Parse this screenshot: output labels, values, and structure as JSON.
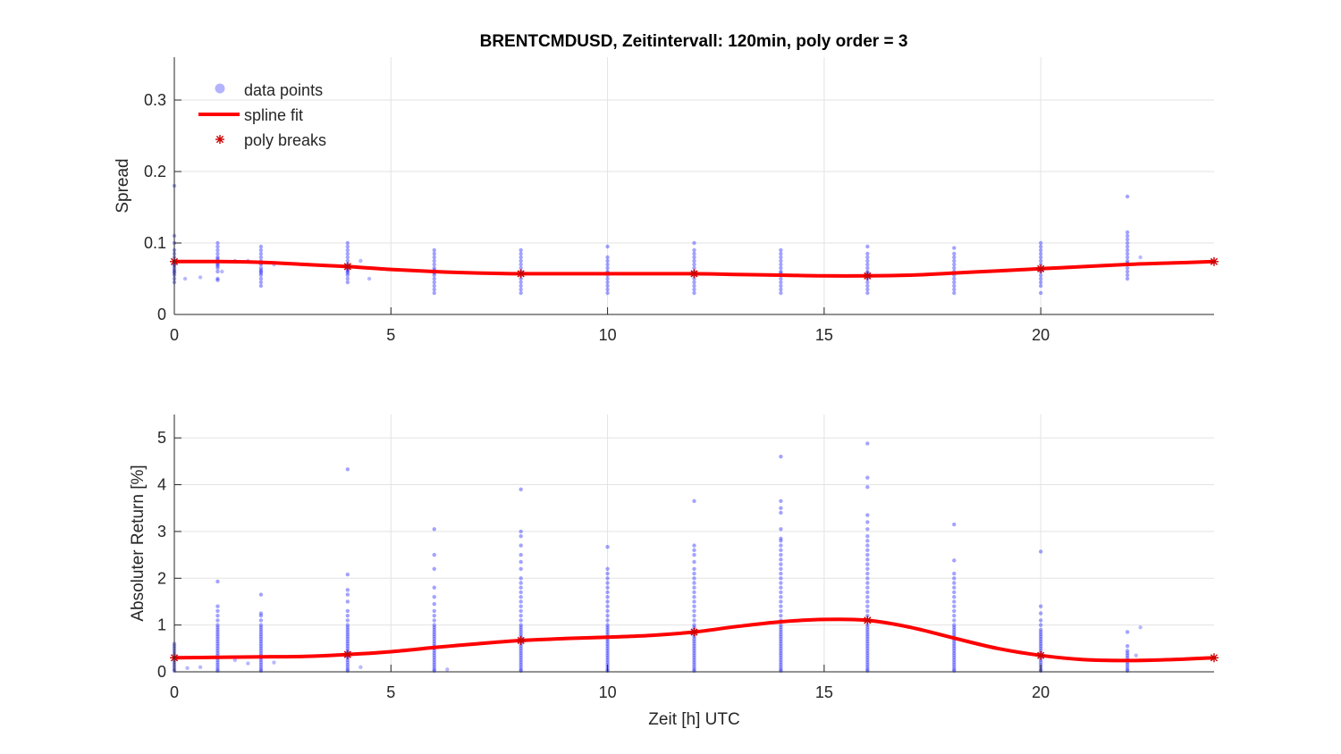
{
  "figure_title": "BRENTCMDUSD, Zeitintervall: 120min, poly order = 3",
  "legend": {
    "placement": "top-left",
    "entries": [
      {
        "key": "data",
        "label": "data points",
        "color": "#8080ff"
      },
      {
        "key": "fit",
        "label": "spline fit",
        "color": "#ff0000"
      },
      {
        "key": "breaks",
        "label": "poly breaks",
        "color": "#cc0000"
      }
    ]
  },
  "chart_data": [
    {
      "type": "scatter",
      "title": "BRENTCMDUSD, Zeitintervall: 120min, poly order = 3",
      "xlabel": "",
      "ylabel": "Spread",
      "xlim": [
        0,
        24
      ],
      "ylim": [
        0,
        0.36
      ],
      "xticks": [
        0,
        5,
        10,
        15,
        20
      ],
      "yticks": [
        0,
        0.1,
        0.2,
        0.3
      ],
      "grid": true,
      "scatter_columns": [
        {
          "x": 0,
          "values": [
            0.045,
            0.05,
            0.055,
            0.06,
            0.065,
            0.07,
            0.075,
            0.08,
            0.085,
            0.09,
            0.1,
            0.11,
            0.18,
            0.062,
            0.072,
            0.068,
            0.058
          ]
        },
        {
          "x": 1,
          "values": [
            0.05,
            0.06,
            0.065,
            0.07,
            0.075,
            0.08,
            0.085,
            0.09,
            0.095,
            0.1,
            0.072,
            0.068,
            0.078,
            0.048
          ]
        },
        {
          "x": 2,
          "values": [
            0.04,
            0.045,
            0.05,
            0.055,
            0.06,
            0.065,
            0.07,
            0.075,
            0.08,
            0.085,
            0.09,
            0.095,
            0.062,
            0.072,
            0.058
          ]
        },
        {
          "x": 4,
          "values": [
            0.045,
            0.05,
            0.055,
            0.06,
            0.065,
            0.07,
            0.075,
            0.08,
            0.085,
            0.09,
            0.095,
            0.1,
            0.062,
            0.068,
            0.058
          ]
        },
        {
          "x": 6,
          "values": [
            0.03,
            0.035,
            0.04,
            0.045,
            0.05,
            0.055,
            0.06,
            0.065,
            0.07,
            0.075,
            0.08,
            0.085,
            0.09,
            0.058,
            0.062
          ]
        },
        {
          "x": 8,
          "values": [
            0.03,
            0.035,
            0.04,
            0.045,
            0.05,
            0.055,
            0.06,
            0.065,
            0.07,
            0.075,
            0.08,
            0.085,
            0.09,
            0.058
          ]
        },
        {
          "x": 10,
          "values": [
            0.03,
            0.035,
            0.04,
            0.045,
            0.05,
            0.055,
            0.06,
            0.065,
            0.07,
            0.075,
            0.08,
            0.095,
            0.058
          ]
        },
        {
          "x": 12,
          "values": [
            0.03,
            0.035,
            0.04,
            0.045,
            0.05,
            0.055,
            0.06,
            0.065,
            0.07,
            0.075,
            0.08,
            0.085,
            0.09,
            0.1,
            0.058
          ]
        },
        {
          "x": 14,
          "values": [
            0.03,
            0.035,
            0.04,
            0.045,
            0.05,
            0.055,
            0.06,
            0.065,
            0.07,
            0.075,
            0.08,
            0.085,
            0.09,
            0.058
          ]
        },
        {
          "x": 16,
          "values": [
            0.03,
            0.035,
            0.04,
            0.045,
            0.05,
            0.055,
            0.06,
            0.065,
            0.07,
            0.075,
            0.08,
            0.085,
            0.095,
            0.058
          ]
        },
        {
          "x": 18,
          "values": [
            0.03,
            0.035,
            0.04,
            0.045,
            0.05,
            0.055,
            0.06,
            0.065,
            0.07,
            0.075,
            0.08,
            0.085,
            0.093,
            0.058
          ]
        },
        {
          "x": 20,
          "values": [
            0.03,
            0.04,
            0.045,
            0.05,
            0.055,
            0.06,
            0.065,
            0.07,
            0.075,
            0.08,
            0.085,
            0.09,
            0.095,
            0.1,
            0.062
          ]
        },
        {
          "x": 22,
          "values": [
            0.05,
            0.055,
            0.06,
            0.065,
            0.07,
            0.075,
            0.08,
            0.085,
            0.09,
            0.095,
            0.1,
            0.105,
            0.11,
            0.115,
            0.165,
            0.072
          ]
        }
      ],
      "scatter_extra": [
        {
          "x": 0.25,
          "y": 0.05
        },
        {
          "x": 0.6,
          "y": 0.052
        },
        {
          "x": 1.4,
          "y": 0.075
        },
        {
          "x": 1.7,
          "y": 0.075
        },
        {
          "x": 2.3,
          "y": 0.07
        },
        {
          "x": 4.3,
          "y": 0.075
        },
        {
          "x": 4.5,
          "y": 0.05
        },
        {
          "x": 1.1,
          "y": 0.06
        },
        {
          "x": 22.3,
          "y": 0.08
        }
      ],
      "spline_fit": {
        "x": [
          0,
          1,
          2,
          3,
          4,
          5,
          6,
          7,
          8,
          9,
          10,
          11,
          12,
          13,
          14,
          15,
          16,
          17,
          18,
          19,
          20,
          21,
          22,
          23,
          24
        ],
        "y": [
          0.074,
          0.074,
          0.073,
          0.07,
          0.067,
          0.063,
          0.06,
          0.058,
          0.057,
          0.057,
          0.057,
          0.057,
          0.057,
          0.056,
          0.055,
          0.054,
          0.054,
          0.055,
          0.058,
          0.061,
          0.064,
          0.067,
          0.07,
          0.072,
          0.074
        ]
      },
      "poly_breaks": {
        "x": [
          0,
          4,
          8,
          12,
          16,
          20,
          24
        ],
        "y": [
          0.074,
          0.067,
          0.057,
          0.057,
          0.054,
          0.064,
          0.074
        ]
      }
    },
    {
      "type": "scatter",
      "title": "",
      "xlabel": "Zeit [h] UTC",
      "ylabel": "Absoluter Return [%]",
      "xlim": [
        0,
        24
      ],
      "ylim": [
        0,
        5.5
      ],
      "xticks": [
        0,
        5,
        10,
        15,
        20
      ],
      "yticks": [
        0,
        1,
        2,
        3,
        4,
        5
      ],
      "grid": true,
      "scatter_columns": [
        {
          "x": 0,
          "values": [
            0.02,
            0.05,
            0.1,
            0.15,
            0.2,
            0.25,
            0.3,
            0.35,
            0.4,
            0.45,
            0.5,
            0.55,
            0.6
          ]
        },
        {
          "x": 1,
          "values": [
            0.02,
            0.05,
            0.1,
            0.15,
            0.2,
            0.25,
            0.3,
            0.35,
            0.4,
            0.45,
            0.5,
            0.55,
            0.6,
            0.65,
            0.7,
            0.75,
            0.8,
            0.85,
            0.9,
            0.95,
            1.0,
            1.1,
            1.2,
            1.3,
            1.4,
            1.93
          ]
        },
        {
          "x": 2,
          "values": [
            0.02,
            0.05,
            0.1,
            0.15,
            0.2,
            0.25,
            0.3,
            0.35,
            0.4,
            0.45,
            0.5,
            0.55,
            0.6,
            0.65,
            0.7,
            0.75,
            0.8,
            0.85,
            0.9,
            0.95,
            1.0,
            1.1,
            1.2,
            1.25,
            1.65
          ]
        },
        {
          "x": 4,
          "values": [
            0.02,
            0.05,
            0.1,
            0.15,
            0.2,
            0.25,
            0.3,
            0.35,
            0.4,
            0.45,
            0.5,
            0.55,
            0.6,
            0.65,
            0.7,
            0.75,
            0.8,
            0.85,
            0.9,
            0.95,
            1.0,
            1.1,
            1.2,
            1.3,
            1.5,
            1.65,
            1.75,
            2.08,
            4.33
          ]
        },
        {
          "x": 6,
          "values": [
            0.02,
            0.05,
            0.1,
            0.15,
            0.2,
            0.25,
            0.3,
            0.35,
            0.4,
            0.45,
            0.5,
            0.55,
            0.6,
            0.65,
            0.7,
            0.75,
            0.8,
            0.85,
            0.9,
            0.95,
            1.0,
            1.1,
            1.2,
            1.3,
            1.45,
            1.6,
            1.8,
            2.2,
            2.5,
            3.05
          ]
        },
        {
          "x": 8,
          "values": [
            0.02,
            0.05,
            0.1,
            0.15,
            0.2,
            0.25,
            0.3,
            0.35,
            0.4,
            0.45,
            0.5,
            0.55,
            0.6,
            0.65,
            0.7,
            0.75,
            0.8,
            0.85,
            0.9,
            0.95,
            1.0,
            1.1,
            1.2,
            1.3,
            1.4,
            1.5,
            1.6,
            1.7,
            1.8,
            1.9,
            2.0,
            2.2,
            2.35,
            2.5,
            2.7,
            2.9,
            3.0,
            3.9
          ]
        },
        {
          "x": 10,
          "values": [
            0.02,
            0.05,
            0.1,
            0.15,
            0.2,
            0.25,
            0.3,
            0.35,
            0.4,
            0.45,
            0.5,
            0.55,
            0.6,
            0.65,
            0.7,
            0.75,
            0.8,
            0.85,
            0.9,
            0.95,
            1.0,
            1.1,
            1.2,
            1.3,
            1.4,
            1.5,
            1.6,
            1.7,
            1.8,
            1.9,
            2.0,
            2.1,
            2.2,
            2.67
          ]
        },
        {
          "x": 12,
          "values": [
            0.02,
            0.05,
            0.1,
            0.15,
            0.2,
            0.25,
            0.3,
            0.35,
            0.4,
            0.45,
            0.5,
            0.55,
            0.6,
            0.65,
            0.7,
            0.75,
            0.8,
            0.85,
            0.9,
            0.95,
            1.0,
            1.1,
            1.2,
            1.3,
            1.4,
            1.5,
            1.6,
            1.7,
            1.8,
            1.9,
            2.0,
            2.1,
            2.2,
            2.35,
            2.5,
            2.6,
            2.7,
            3.65
          ]
        },
        {
          "x": 14,
          "values": [
            0.02,
            0.05,
            0.1,
            0.15,
            0.2,
            0.25,
            0.3,
            0.35,
            0.4,
            0.45,
            0.5,
            0.55,
            0.6,
            0.65,
            0.7,
            0.75,
            0.8,
            0.85,
            0.9,
            0.95,
            1.0,
            1.1,
            1.2,
            1.3,
            1.4,
            1.5,
            1.6,
            1.7,
            1.8,
            1.9,
            2.0,
            2.1,
            2.2,
            2.3,
            2.4,
            2.5,
            2.6,
            2.7,
            2.8,
            2.85,
            3.05,
            3.4,
            3.5,
            3.65,
            4.6
          ]
        },
        {
          "x": 16,
          "values": [
            0.02,
            0.05,
            0.1,
            0.15,
            0.2,
            0.25,
            0.3,
            0.35,
            0.4,
            0.45,
            0.5,
            0.55,
            0.6,
            0.65,
            0.7,
            0.75,
            0.8,
            0.85,
            0.9,
            0.95,
            1.0,
            1.1,
            1.2,
            1.3,
            1.4,
            1.5,
            1.6,
            1.7,
            1.8,
            1.9,
            2.0,
            2.1,
            2.2,
            2.3,
            2.4,
            2.5,
            2.6,
            2.7,
            2.8,
            2.9,
            3.05,
            3.2,
            3.35,
            3.95,
            4.15,
            4.88
          ]
        },
        {
          "x": 18,
          "values": [
            0.02,
            0.05,
            0.1,
            0.15,
            0.2,
            0.25,
            0.3,
            0.35,
            0.4,
            0.45,
            0.5,
            0.55,
            0.6,
            0.65,
            0.7,
            0.75,
            0.8,
            0.85,
            0.9,
            0.95,
            1.0,
            1.1,
            1.2,
            1.3,
            1.4,
            1.5,
            1.6,
            1.7,
            1.8,
            1.9,
            2.0,
            2.1,
            2.38,
            3.15
          ]
        },
        {
          "x": 20,
          "values": [
            0.02,
            0.05,
            0.1,
            0.15,
            0.2,
            0.25,
            0.3,
            0.35,
            0.4,
            0.45,
            0.5,
            0.55,
            0.6,
            0.65,
            0.7,
            0.75,
            0.8,
            0.85,
            0.9,
            1.0,
            1.1,
            1.25,
            1.4,
            2.57
          ]
        },
        {
          "x": 22,
          "values": [
            0.02,
            0.05,
            0.1,
            0.15,
            0.2,
            0.25,
            0.3,
            0.35,
            0.4,
            0.45,
            0.55,
            0.85
          ]
        }
      ],
      "scatter_extra": [
        {
          "x": 0.3,
          "y": 0.08
        },
        {
          "x": 0.6,
          "y": 0.1
        },
        {
          "x": 1.4,
          "y": 0.25
        },
        {
          "x": 1.7,
          "y": 0.18
        },
        {
          "x": 2.3,
          "y": 0.2
        },
        {
          "x": 4.3,
          "y": 0.1
        },
        {
          "x": 6.3,
          "y": 0.05
        },
        {
          "x": 22.3,
          "y": 0.95
        },
        {
          "x": 22.2,
          "y": 0.35
        }
      ],
      "spline_fit": {
        "x": [
          0,
          1,
          2,
          3,
          4,
          5,
          6,
          7,
          8,
          9,
          10,
          11,
          12,
          13,
          14,
          15,
          16,
          17,
          18,
          19,
          20,
          21,
          22,
          23,
          24
        ],
        "y": [
          0.3,
          0.31,
          0.32,
          0.33,
          0.37,
          0.43,
          0.52,
          0.6,
          0.67,
          0.71,
          0.74,
          0.78,
          0.85,
          0.97,
          1.07,
          1.12,
          1.1,
          0.95,
          0.72,
          0.5,
          0.35,
          0.26,
          0.24,
          0.26,
          0.3
        ]
      },
      "poly_breaks": {
        "x": [
          0,
          4,
          8,
          12,
          16,
          20,
          24
        ],
        "y": [
          0.3,
          0.37,
          0.67,
          0.85,
          1.1,
          0.35,
          0.3
        ]
      }
    }
  ]
}
